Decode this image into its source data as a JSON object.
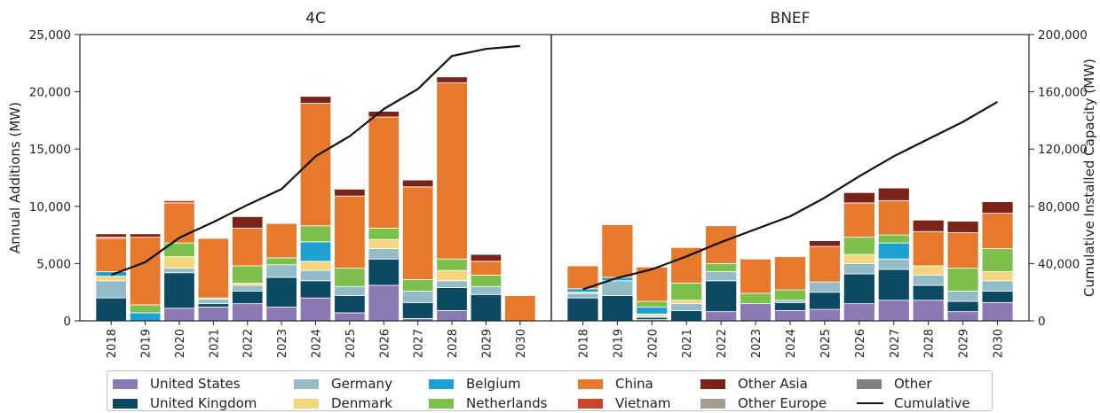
{
  "chart_data": {
    "type": "bar",
    "stacked": true,
    "ylabel_left": "Annual Additions (MW)",
    "ylabel_right": "Cumulative Installed Capacity (MW)",
    "ylim_left": [
      0,
      25000
    ],
    "ylim_right": [
      0,
      200000
    ],
    "yticks_left": [
      "0",
      "5,000",
      "10,000",
      "15,000",
      "20,000",
      "25,000"
    ],
    "yticks_right": [
      "0",
      "40,000",
      "80,000",
      "120,000",
      "160,000",
      "200,000"
    ],
    "legend_position": "bottom",
    "series_order": [
      "United States",
      "United Kingdom",
      "Germany",
      "Denmark",
      "Belgium",
      "Netherlands",
      "China",
      "Vietnam",
      "Other Asia",
      "Other Europe",
      "Other"
    ],
    "colors": {
      "United States": "#8c79b3",
      "United Kingdom": "#0b4a62",
      "Germany": "#93bcc6",
      "Denmark": "#f5d67e",
      "Belgium": "#1fa0d3",
      "Netherlands": "#7cc04b",
      "China": "#e6792b",
      "Vietnam": "#c8442b",
      "Other Asia": "#7a2318",
      "Other Europe": "#a39e93",
      "Other": "#808080",
      "Cumulative": "#111111"
    },
    "legend": [
      {
        "label": "United States",
        "kind": "bar"
      },
      {
        "label": "United Kingdom",
        "kind": "bar"
      },
      {
        "label": "Germany",
        "kind": "bar"
      },
      {
        "label": "Denmark",
        "kind": "bar"
      },
      {
        "label": "Belgium",
        "kind": "bar"
      },
      {
        "label": "Netherlands",
        "kind": "bar"
      },
      {
        "label": "China",
        "kind": "bar"
      },
      {
        "label": "Vietnam",
        "kind": "bar"
      },
      {
        "label": "Other Asia",
        "kind": "bar"
      },
      {
        "label": "Other Europe",
        "kind": "bar"
      },
      {
        "label": "Other",
        "kind": "bar"
      },
      {
        "label": "Cumulative",
        "kind": "line"
      }
    ],
    "panels": [
      {
        "title": "4C",
        "categories": [
          "2018",
          "2019",
          "2020",
          "2021",
          "2022",
          "2023",
          "2024",
          "2025",
          "2026",
          "2027",
          "2028",
          "2029",
          "2030"
        ],
        "series": [
          {
            "name": "United States",
            "values": [
              0,
              0,
              1100,
              1200,
              1500,
              1200,
              2000,
              700,
              3100,
              200,
              900,
              0,
              0
            ]
          },
          {
            "name": "United Kingdom",
            "values": [
              2000,
              0,
              3100,
              300,
              1100,
              2600,
              1500,
              1500,
              2300,
              1400,
              2000,
              2300,
              0
            ]
          },
          {
            "name": "Germany",
            "values": [
              1500,
              0,
              400,
              400,
              500,
              1100,
              900,
              800,
              900,
              1000,
              600,
              700,
              0
            ]
          },
          {
            "name": "Denmark",
            "values": [
              400,
              0,
              1000,
              100,
              200,
              0,
              800,
              0,
              800,
              0,
              900,
              0,
              0
            ]
          },
          {
            "name": "Belgium",
            "values": [
              400,
              700,
              0,
              0,
              0,
              0,
              1700,
              0,
              0,
              0,
              0,
              0,
              0
            ]
          },
          {
            "name": "Netherlands",
            "values": [
              0,
              700,
              1200,
              0,
              1500,
              600,
              1400,
              1600,
              1000,
              1000,
              1000,
              1000,
              0
            ]
          },
          {
            "name": "China",
            "values": [
              2900,
              5900,
              3500,
              5200,
              3300,
              3000,
              10700,
              6300,
              9700,
              8100,
              15400,
              1200,
              2200
            ]
          },
          {
            "name": "Vietnam",
            "values": [
              100,
              0,
              200,
              0,
              0,
              0,
              0,
              0,
              0,
              0,
              0,
              0,
              0
            ]
          },
          {
            "name": "Other Asia",
            "values": [
              300,
              300,
              0,
              0,
              1000,
              0,
              600,
              600,
              500,
              600,
              500,
              600,
              0
            ]
          },
          {
            "name": "Other Europe",
            "values": [
              0,
              0,
              0,
              0,
              0,
              0,
              0,
              0,
              0,
              0,
              0,
              0,
              0
            ]
          },
          {
            "name": "Other",
            "values": [
              0,
              0,
              0,
              0,
              0,
              0,
              0,
              0,
              0,
              0,
              0,
              0,
              0
            ]
          }
        ],
        "cumulative": [
          32000,
          41000,
          58000,
          69000,
          81000,
          92000,
          115000,
          129000,
          148000,
          162000,
          185000,
          190000,
          192000
        ]
      },
      {
        "title": "BNEF",
        "categories": [
          "2018",
          "2019",
          "2020",
          "2021",
          "2022",
          "2023",
          "2024",
          "2025",
          "2026",
          "2027",
          "2028",
          "2029",
          "2030"
        ],
        "series": [
          {
            "name": "United States",
            "values": [
              0,
              0,
              100,
              0,
              800,
              1500,
              900,
              1000,
              1500,
              1800,
              1800,
              800,
              1600
            ]
          },
          {
            "name": "United Kingdom",
            "values": [
              2000,
              2200,
              200,
              900,
              2700,
              0,
              700,
              1500,
              2600,
              2700,
              1300,
              900,
              1000
            ]
          },
          {
            "name": "Germany",
            "values": [
              400,
              1300,
              100,
              600,
              800,
              0,
              200,
              900,
              900,
              900,
              900,
              900,
              900
            ]
          },
          {
            "name": "Denmark",
            "values": [
              100,
              0,
              200,
              300,
              0,
              0,
              0,
              0,
              800,
              0,
              800,
              0,
              800
            ]
          },
          {
            "name": "Belgium",
            "values": [
              300,
              300,
              600,
              0,
              0,
              0,
              0,
              0,
              0,
              1400,
              0,
              0,
              0
            ]
          },
          {
            "name": "Netherlands",
            "values": [
              0,
              0,
              500,
              1500,
              700,
              900,
              900,
              0,
              1500,
              700,
              0,
              2000,
              2000
            ]
          },
          {
            "name": "China",
            "values": [
              2000,
              4600,
              3000,
              3100,
              3300,
              3000,
              2900,
              3100,
              3000,
              3000,
              3000,
              3100,
              3100
            ]
          },
          {
            "name": "Vietnam",
            "values": [
              0,
              0,
              0,
              0,
              0,
              0,
              0,
              0,
              0,
              0,
              0,
              0,
              0
            ]
          },
          {
            "name": "Other Asia",
            "values": [
              0,
              0,
              0,
              0,
              0,
              0,
              0,
              500,
              900,
              1100,
              1000,
              1000,
              1000
            ]
          },
          {
            "name": "Other Europe",
            "values": [
              0,
              0,
              0,
              0,
              0,
              0,
              0,
              0,
              0,
              0,
              0,
              0,
              0
            ]
          },
          {
            "name": "Other",
            "values": [
              0,
              0,
              0,
              0,
              0,
              0,
              0,
              0,
              0,
              0,
              0,
              0,
              0
            ]
          }
        ],
        "cumulative": [
          22000,
          30000,
          36000,
          45000,
          55000,
          64000,
          73000,
          86000,
          101000,
          115000,
          127000,
          139000,
          153000
        ]
      }
    ]
  }
}
